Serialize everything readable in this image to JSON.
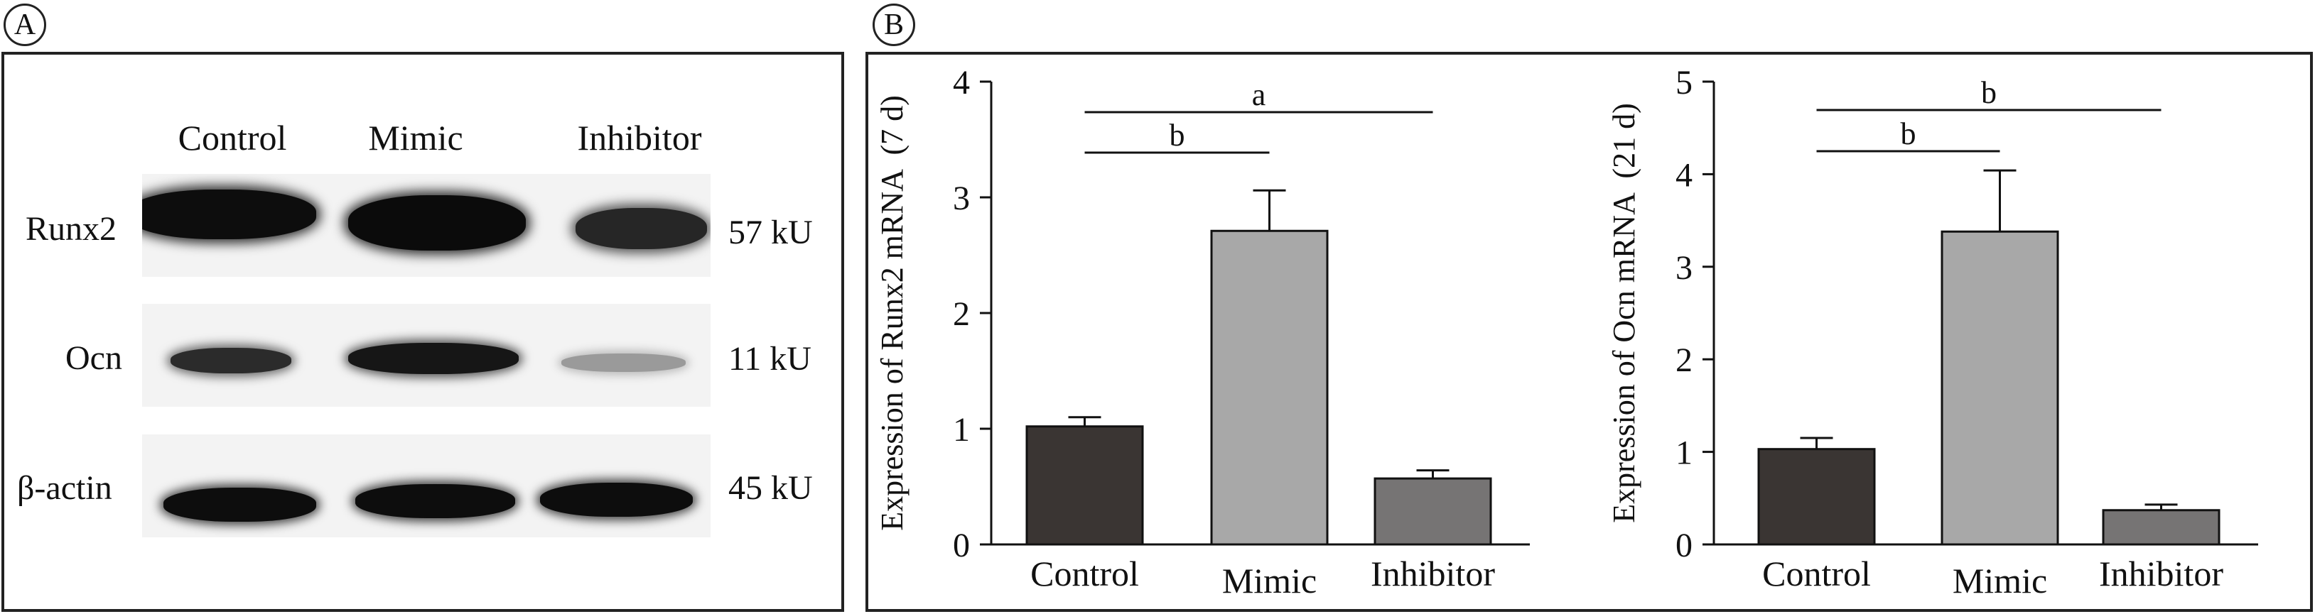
{
  "panel_a": {
    "label": "A",
    "lanes": [
      "Control",
      "Mimic",
      "Inhibitor"
    ],
    "rows": [
      {
        "name": "Runx2",
        "size": "57 kU"
      },
      {
        "name": "Ocn",
        "size": "11 kU"
      },
      {
        "name": "β-actin",
        "size": "45 kU"
      }
    ]
  },
  "panel_b": {
    "label": "B"
  },
  "colors": {
    "control": "#3a3533",
    "mimic": "#a8a8a8",
    "inhibitor": "#767474",
    "axis": "#111111"
  },
  "chart_data": [
    {
      "type": "bar",
      "title": "",
      "categories": [
        "Control",
        "Mimic",
        "Inhibitor"
      ],
      "values": [
        1.02,
        2.71,
        0.57
      ],
      "errors": [
        0.08,
        0.35,
        0.07
      ],
      "ylabel": "Expression of Runx2 mRNA  (7 d)",
      "xlabel": "",
      "ylim": [
        0,
        4
      ],
      "yticks": [
        "0",
        "1",
        "2",
        "3",
        "4"
      ],
      "significance": [
        {
          "from": "Control",
          "to": "Mimic",
          "label": "b"
        },
        {
          "from": "Control",
          "to": "Inhibitor",
          "label": "a"
        }
      ]
    },
    {
      "type": "bar",
      "title": "",
      "categories": [
        "Control",
        "Mimic",
        "Inhibitor"
      ],
      "values": [
        1.03,
        3.38,
        0.37
      ],
      "errors": [
        0.12,
        0.66,
        0.06
      ],
      "ylabel": "Expression of Ocn mRNA  (21 d)",
      "xlabel": "",
      "ylim": [
        0,
        5
      ],
      "yticks": [
        "0",
        "1",
        "2",
        "3",
        "4",
        "5"
      ],
      "significance": [
        {
          "from": "Control",
          "to": "Mimic",
          "label": "b"
        },
        {
          "from": "Control",
          "to": "Inhibitor",
          "label": "b"
        }
      ]
    }
  ]
}
